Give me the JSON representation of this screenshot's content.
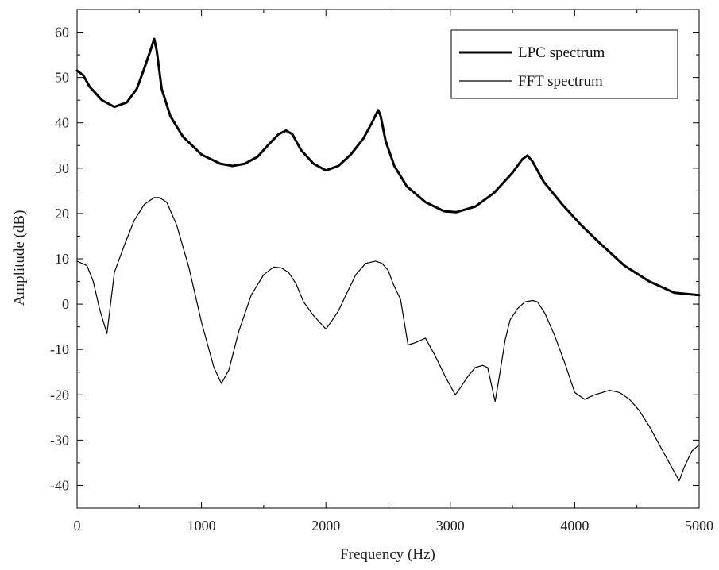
{
  "chart_data": {
    "type": "line",
    "title": "",
    "xlabel": "Frequency (Hz)",
    "ylabel": "Amplitude (dB)",
    "xlim": [
      0,
      5000
    ],
    "ylim": [
      -45,
      65
    ],
    "xticks": [
      0,
      1000,
      2000,
      3000,
      4000,
      5000
    ],
    "xtick_labels": [
      "0",
      "1000",
      "2000",
      "3000",
      "4000",
      "5000"
    ],
    "yticks": [
      -40,
      -30,
      -20,
      -10,
      0,
      10,
      20,
      30,
      40,
      50,
      60
    ],
    "ytick_labels": [
      "-40",
      "-30",
      "-20",
      "-10",
      "0",
      "10",
      "20",
      "30",
      "40",
      "50",
      "60"
    ],
    "grid": false,
    "legend_position": "top-right",
    "series": [
      {
        "name": "LPC spectrum",
        "color": "#000000",
        "style": "thick",
        "x": [
          0,
          50,
          100,
          200,
          300,
          400,
          480,
          540,
          590,
          620,
          640,
          680,
          750,
          850,
          1000,
          1150,
          1250,
          1350,
          1450,
          1550,
          1620,
          1680,
          1730,
          1800,
          1900,
          2000,
          2100,
          2200,
          2300,
          2370,
          2420,
          2440,
          2480,
          2550,
          2650,
          2800,
          2950,
          3050,
          3200,
          3350,
          3500,
          3580,
          3620,
          3660,
          3750,
          3900,
          4050,
          4200,
          4400,
          4600,
          4800,
          5000
        ],
        "y": [
          51.5,
          50.5,
          48,
          45,
          43.5,
          44.5,
          47.5,
          52,
          56,
          58.5,
          56,
          47.5,
          41.5,
          37,
          33,
          31,
          30.5,
          31,
          32.5,
          35.5,
          37.5,
          38.3,
          37.5,
          34,
          31,
          29.5,
          30.5,
          33,
          36.5,
          40,
          42.8,
          41.5,
          36,
          30.5,
          26,
          22.5,
          20.5,
          20.3,
          21.5,
          24.5,
          29,
          32,
          32.8,
          31.5,
          27,
          22,
          17.5,
          13.5,
          8.5,
          5,
          2.5,
          2
        ]
      },
      {
        "name": "FFT spectrum",
        "color": "#000000",
        "style": "thin",
        "x": [
          0,
          80,
          130,
          180,
          240,
          300,
          380,
          460,
          540,
          620,
          660,
          720,
          800,
          900,
          1000,
          1100,
          1160,
          1220,
          1300,
          1400,
          1500,
          1580,
          1640,
          1700,
          1760,
          1820,
          1900,
          2000,
          2040,
          2100,
          2160,
          2240,
          2320,
          2400,
          2450,
          2500,
          2540,
          2600,
          2660,
          2720,
          2800,
          2880,
          2960,
          3040,
          3080,
          3140,
          3200,
          3260,
          3300,
          3360,
          3400,
          3440,
          3480,
          3540,
          3600,
          3660,
          3700,
          3760,
          3840,
          3920,
          4000,
          4080,
          4120,
          4160,
          4220,
          4280,
          4360,
          4440,
          4520,
          4600,
          4700,
          4780,
          4840,
          4880,
          4940,
          5000
        ],
        "y": [
          9.5,
          8.5,
          5,
          -1,
          -6.5,
          7,
          13,
          18.5,
          22,
          23.5,
          23.5,
          22.5,
          17.5,
          8,
          -4,
          -14,
          -17.5,
          -14.5,
          -6,
          2,
          6.5,
          8.2,
          8,
          7,
          4.5,
          0.5,
          -2.5,
          -5.5,
          -4,
          -1.5,
          2,
          6.5,
          9,
          9.5,
          9,
          7.5,
          4.5,
          1,
          -9,
          -8.5,
          -7.5,
          -11.5,
          -16,
          -20,
          -18.5,
          -16,
          -14,
          -13.5,
          -14,
          -21.5,
          -15,
          -8,
          -3.5,
          -1,
          0.5,
          0.8,
          0.5,
          -2,
          -7,
          -13,
          -19.5,
          -21,
          -20.5,
          -20,
          -19.5,
          -19,
          -19.5,
          -21,
          -23.5,
          -27,
          -32,
          -36,
          -39,
          -36,
          -32.5,
          -31
        ]
      }
    ]
  }
}
